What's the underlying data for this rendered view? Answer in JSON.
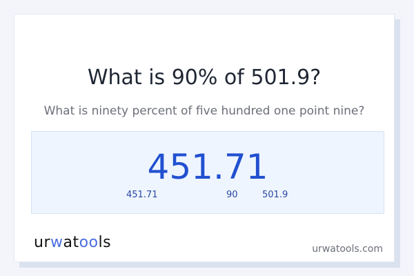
{
  "title": "What is 90% of 501.9?",
  "subtitle": "What is ninety percent of five hundred one point nine?",
  "result": {
    "value": "451.71",
    "result_label": "451.71",
    "percent_label": "90",
    "base_label": "501.9"
  },
  "footer": {
    "logo_text": "urwatools",
    "site": "urwatools.com"
  },
  "colors": {
    "accent": "#2150d0",
    "logo_accent": "#4a6ee0",
    "box_bg": "#eef5ff"
  }
}
